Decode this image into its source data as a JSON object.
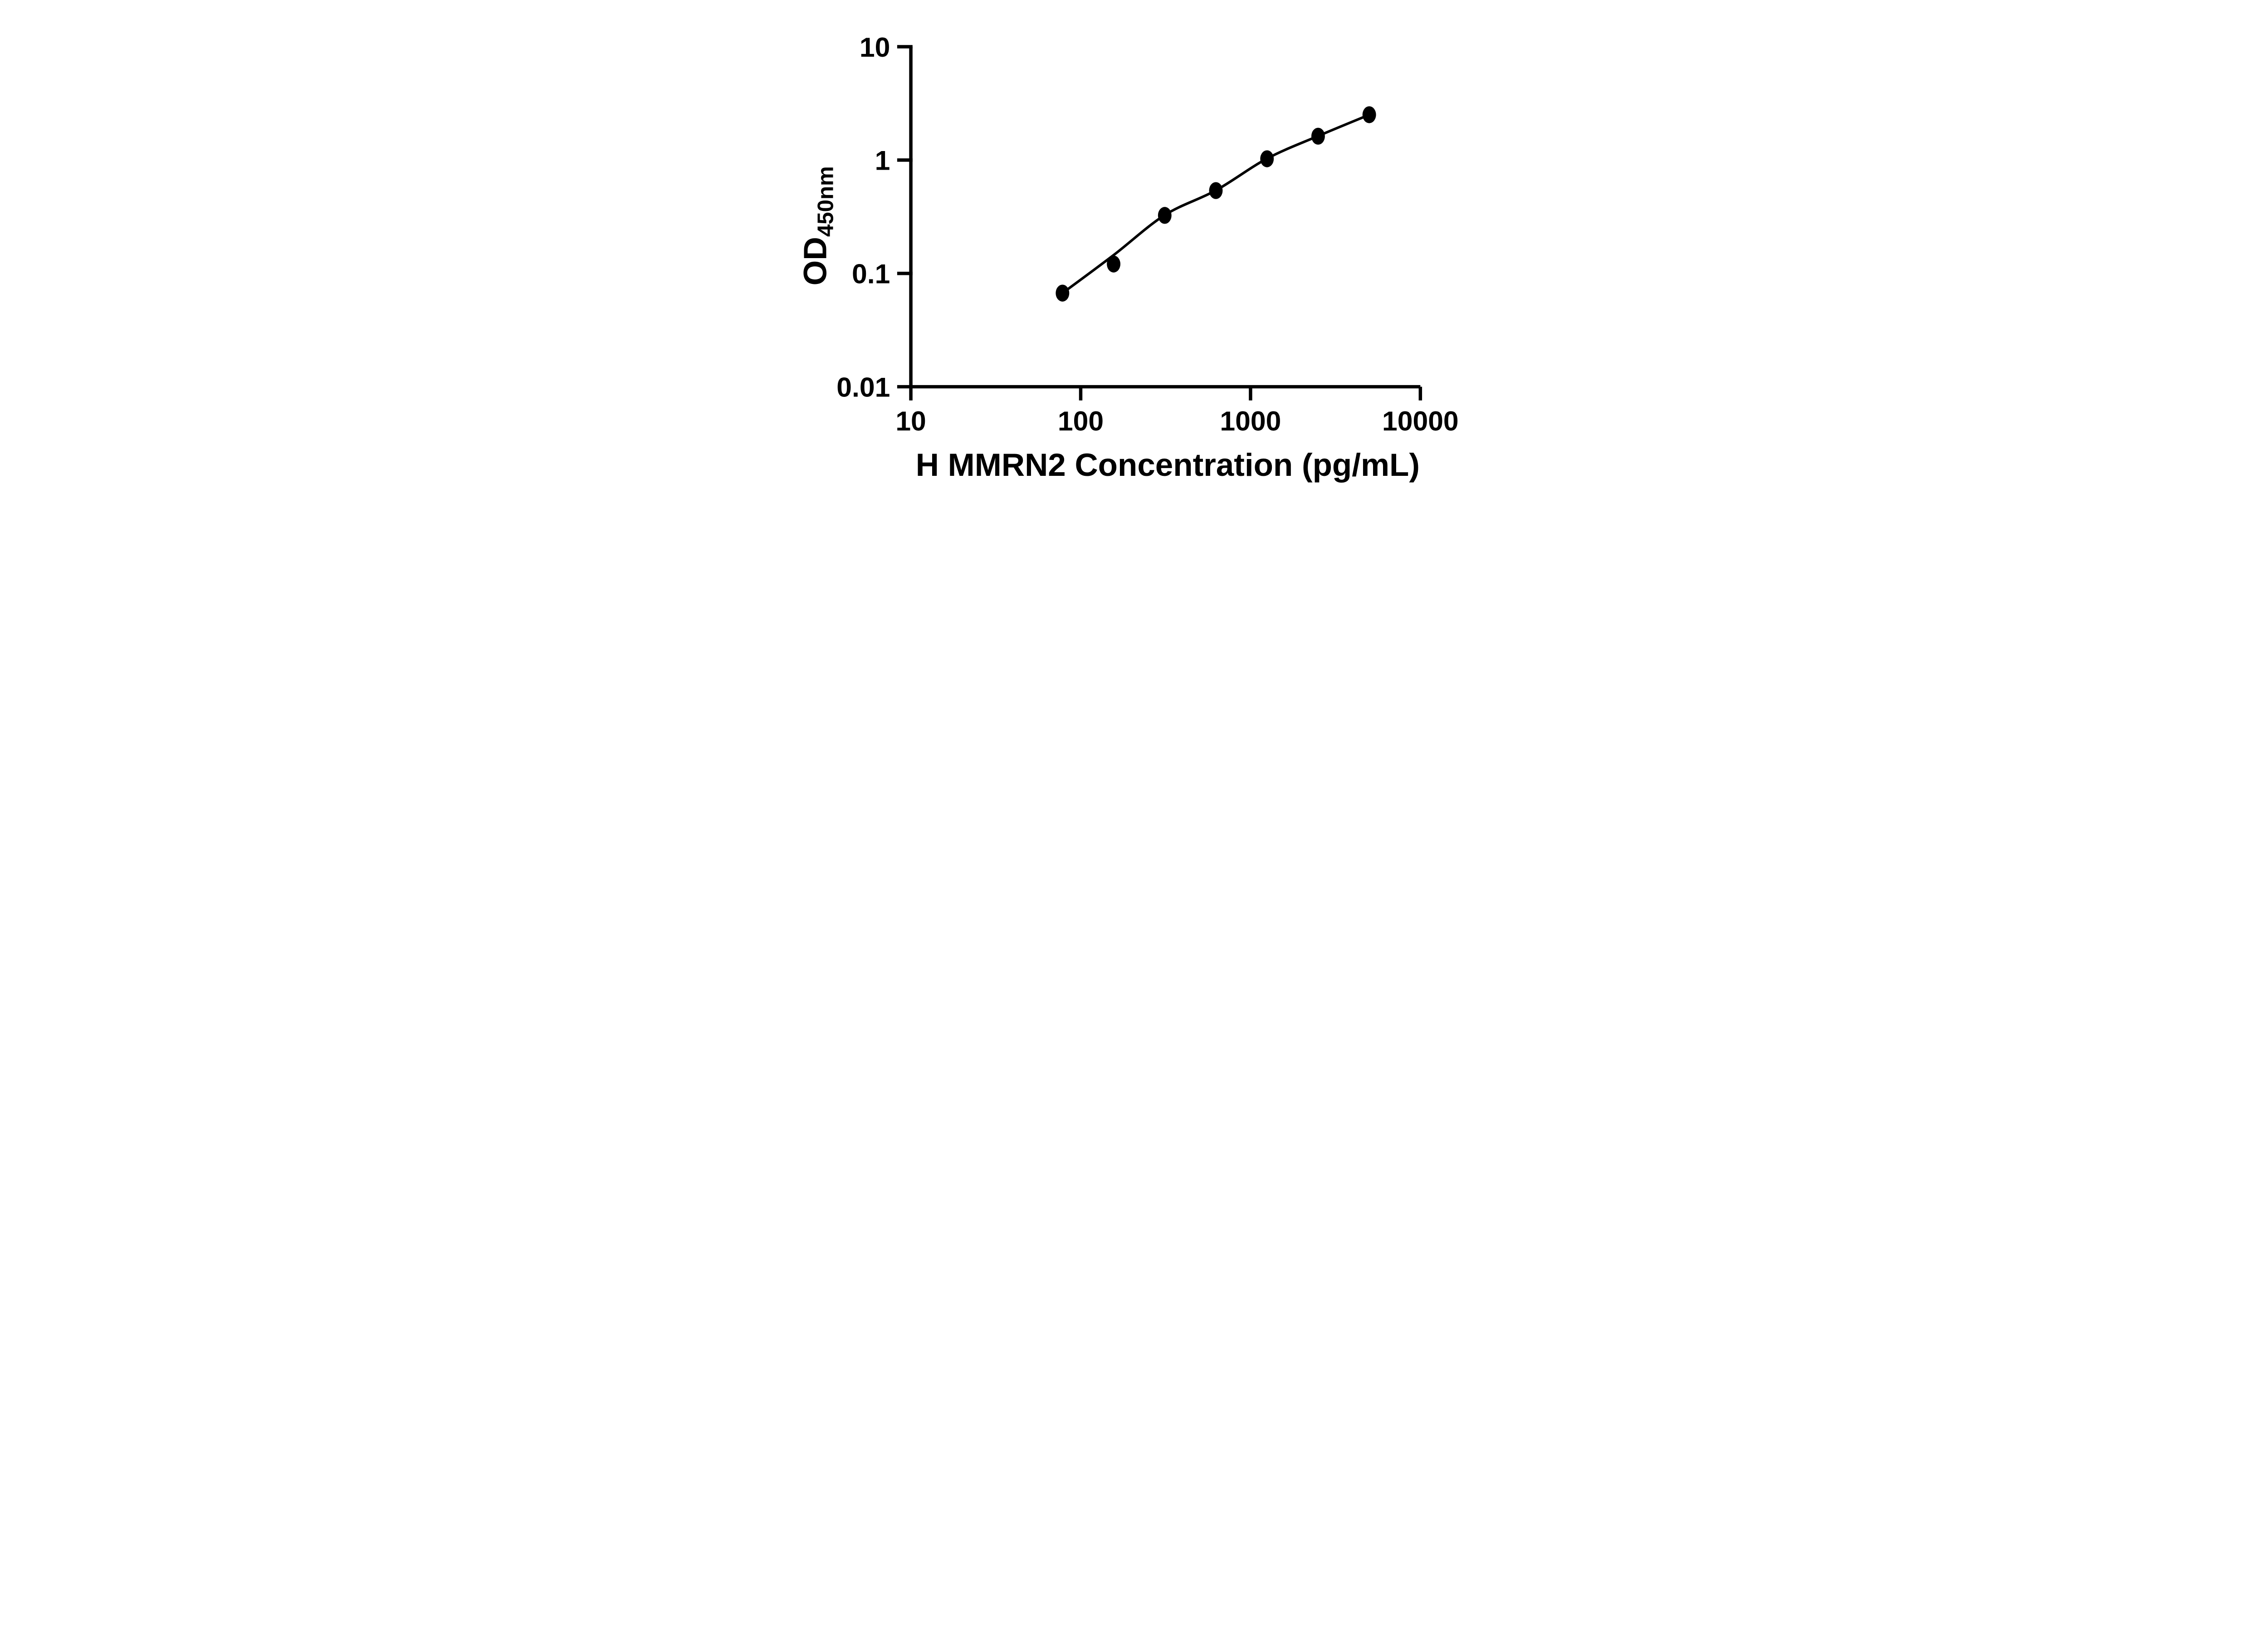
{
  "figure": {
    "background": "#ffffff",
    "ink_color": "#000000"
  },
  "chart_data": {
    "type": "scatter",
    "title": "",
    "xlabel": "H MMRN2 Concentration (pg/mL)",
    "ylabel": "OD450nm",
    "ylabel_main": "OD",
    "ylabel_sub": "450nm",
    "x_scale": "log10",
    "y_scale": "log10",
    "xlim": [
      10,
      10000
    ],
    "ylim": [
      0.01,
      10
    ],
    "x_ticks": [
      10,
      100,
      1000,
      10000
    ],
    "x_tick_labels": [
      "10",
      "100",
      "1000",
      "10000"
    ],
    "y_ticks": [
      0.01,
      0.1,
      1,
      10
    ],
    "y_tick_labels": [
      "0.01",
      "0.1",
      "1",
      "10"
    ],
    "grid": false,
    "legend": null,
    "marker": "filled-ellipse",
    "series": [
      {
        "name": "standard-points",
        "kind": "scatter",
        "color": "#000000",
        "x": [
          78.125,
          156.25,
          312.5,
          625,
          1250,
          2500,
          5000
        ],
        "y": [
          0.067,
          0.121,
          0.325,
          0.538,
          1.026,
          1.624,
          2.512
        ]
      },
      {
        "name": "fitted-curve",
        "kind": "line",
        "color": "#000000",
        "x": [
          78.125,
          156.25,
          312.5,
          625,
          1250,
          2500,
          5000
        ],
        "y": [
          0.067,
          0.145,
          0.327,
          0.54,
          1.03,
          1.63,
          2.51
        ]
      }
    ]
  }
}
